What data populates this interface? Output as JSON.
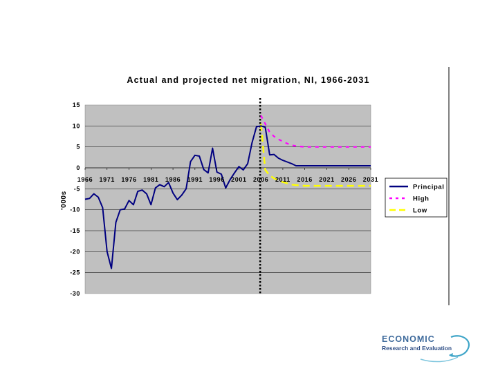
{
  "chart_data": {
    "type": "line",
    "title": "Actual and projected net migration, NI, 1966-2031",
    "xlabel": "",
    "ylabel": "'000s",
    "xlim": [
      1966,
      2031
    ],
    "ylim": [
      -30,
      15
    ],
    "yticks": [
      15,
      10,
      5,
      0,
      -5,
      -10,
      -15,
      -20,
      -25,
      -30
    ],
    "xticks": [
      1966,
      1971,
      1976,
      1981,
      1986,
      1991,
      1996,
      2001,
      2006,
      2011,
      2016,
      2021,
      2026,
      2031
    ],
    "grid": "horizontal",
    "legend_position": "right",
    "base_year_marker": 2006,
    "series": [
      {
        "name": "Principal",
        "color": "#000080",
        "style": "solid",
        "x": [
          1966,
          1967,
          1968,
          1969,
          1970,
          1971,
          1972,
          1973,
          1974,
          1975,
          1976,
          1977,
          1978,
          1979,
          1980,
          1981,
          1982,
          1983,
          1984,
          1985,
          1986,
          1987,
          1988,
          1989,
          1990,
          1991,
          1992,
          1993,
          1994,
          1995,
          1996,
          1997,
          1998,
          1999,
          2000,
          2001,
          2002,
          2003,
          2004,
          2005,
          2006,
          2007,
          2008,
          2009,
          2010,
          2011,
          2012,
          2013,
          2014,
          2015,
          2016,
          2017,
          2018,
          2019,
          2020,
          2021,
          2022,
          2023,
          2024,
          2025,
          2026,
          2027,
          2028,
          2029,
          2030,
          2031
        ],
        "values": [
          -7.5,
          -7.3,
          -6.2,
          -7.0,
          -9.5,
          -20.0,
          -24.0,
          -13.0,
          -10.0,
          -9.8,
          -7.8,
          -8.8,
          -5.6,
          -5.3,
          -6.2,
          -8.8,
          -4.8,
          -4.0,
          -4.5,
          -3.5,
          -6.0,
          -7.6,
          -6.5,
          -5.0,
          1.5,
          3.0,
          2.8,
          -0.4,
          -1.2,
          4.7,
          -1.0,
          -1.5,
          -4.8,
          -2.8,
          -1.2,
          0.3,
          -0.5,
          1.0,
          6.0,
          9.8,
          10.0,
          9.7,
          3.1,
          3.2,
          2.3,
          1.8,
          1.4,
          1.0,
          0.5,
          0.5,
          0.5,
          0.5,
          0.5,
          0.5,
          0.5,
          0.5,
          0.5,
          0.5,
          0.5,
          0.5,
          0.5,
          0.5,
          0.5,
          0.5,
          0.5,
          0.5
        ]
      },
      {
        "name": "High",
        "color": "#ff00ff",
        "style": "dashed",
        "x": [
          2006,
          2007,
          2008,
          2009,
          2010,
          2011,
          2012,
          2013,
          2014,
          2015,
          2016,
          2021,
          2026,
          2031
        ],
        "values": [
          12.5,
          10.5,
          8.5,
          7.5,
          6.8,
          6.3,
          5.8,
          5.4,
          5.2,
          5.1,
          5.0,
          5.0,
          5.0,
          5.0
        ]
      },
      {
        "name": "Low",
        "color": "#ffff00",
        "style": "longdash",
        "x": [
          2006,
          2007,
          2008,
          2009,
          2010,
          2011,
          2012,
          2013,
          2014,
          2015,
          2016,
          2021,
          2026,
          2031
        ],
        "values": [
          10.5,
          -0.5,
          -1.8,
          -2.5,
          -3.0,
          -3.4,
          -3.7,
          -4.0,
          -4.1,
          -4.2,
          -4.3,
          -4.3,
          -4.3,
          -4.3
        ]
      }
    ]
  },
  "legend": {
    "items": [
      "Principal",
      "High",
      "Low"
    ]
  },
  "logo": {
    "line1": "ECONOMIC",
    "line2": "Research and Evaluation"
  },
  "colors": {
    "plot_bg": "#c0c0c0",
    "gridline": "#000000",
    "marker": "#000000"
  }
}
